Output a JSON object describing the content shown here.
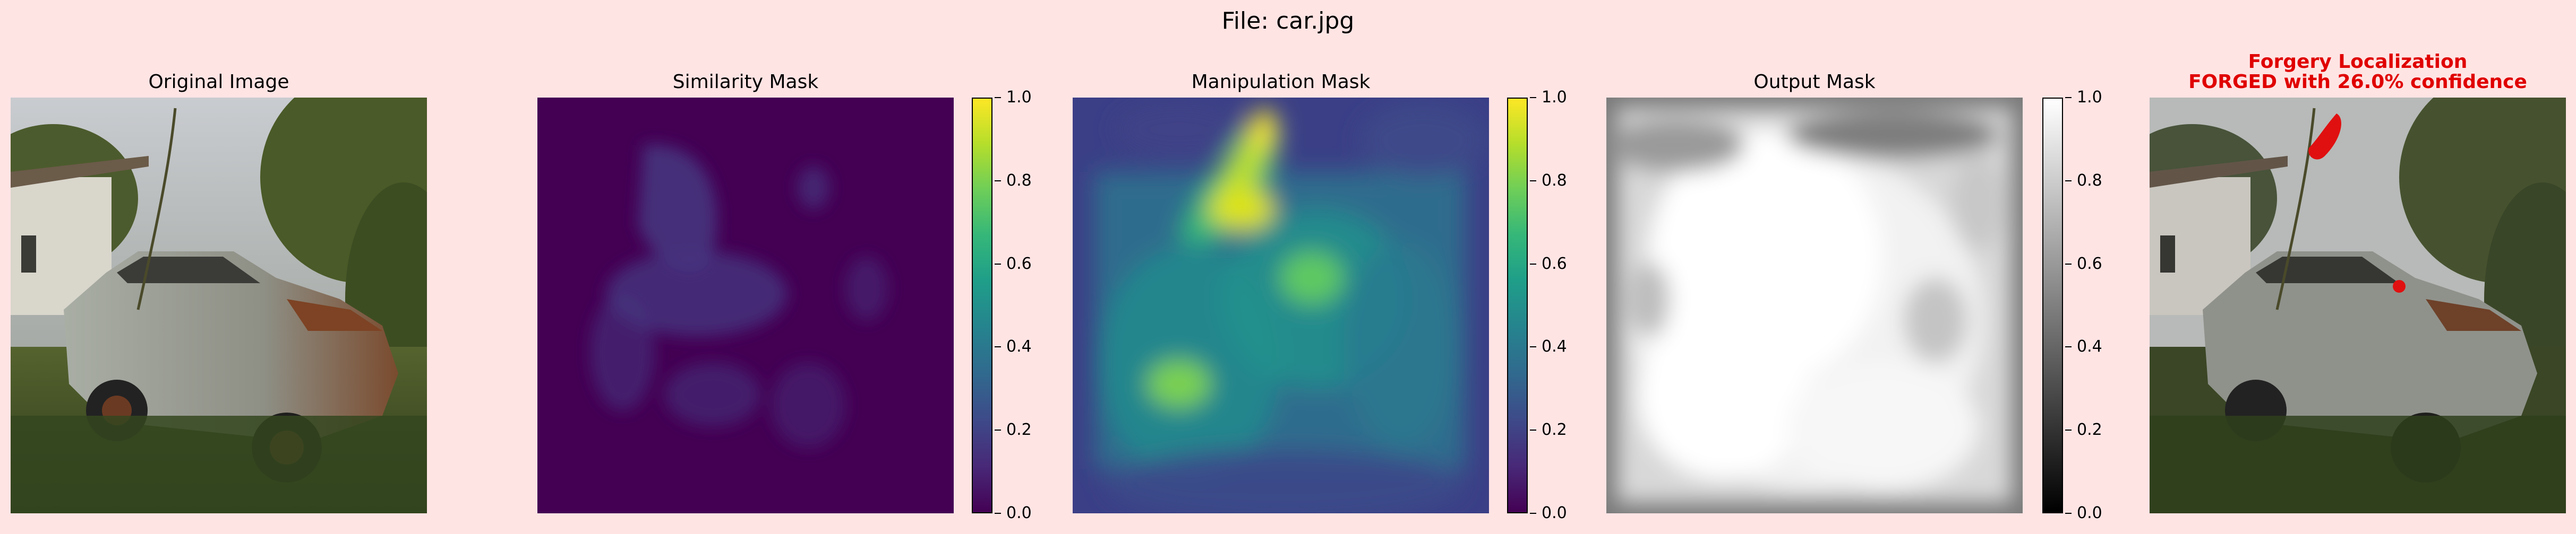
{
  "figure": {
    "title": "File: car.jpg"
  },
  "panels": {
    "original": {
      "title": "Original Image"
    },
    "similarity": {
      "title": "Similarity Mask",
      "colormap": "viridis"
    },
    "manipulation": {
      "title": "Manipulation Mask",
      "colormap": "viridis"
    },
    "output": {
      "title": "Output Mask",
      "colormap": "gray"
    },
    "localization": {
      "title_line1": "Forgery Localization",
      "title_line2": "FORGED with 26.0% confidence",
      "title_color": "#e00000"
    }
  },
  "colorbar_ticks": [
    "0.0",
    "0.2",
    "0.4",
    "0.6",
    "0.8",
    "1.0"
  ],
  "colors": {
    "background": "#ffe4e4",
    "forgery_marker": "#e01010",
    "viridis_low": "#440154",
    "viridis_high": "#fde725"
  }
}
